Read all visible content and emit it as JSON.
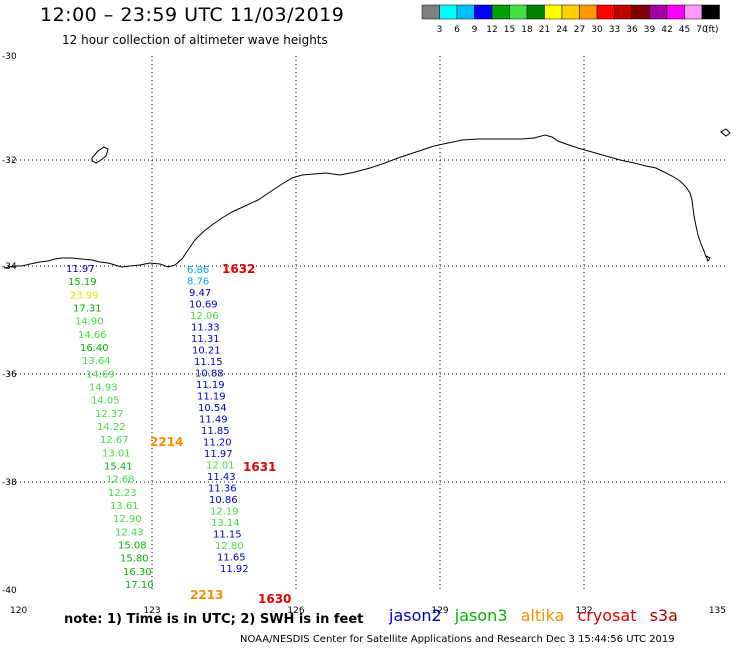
{
  "header": {
    "title": "12:00 – 23:59 UTC 11/03/2019",
    "subtitle": "12 hour collection of altimeter wave heights"
  },
  "colorbar": {
    "colors": [
      "#808080",
      "#00ffff",
      "#00bfff",
      "#0000ff",
      "#00a000",
      "#40e040",
      "#008000",
      "#ffff00",
      "#ffd000",
      "#ff9900",
      "#ff0000",
      "#c00000",
      "#800000",
      "#a000a0",
      "#ff00ff",
      "#ff99ff",
      "#000000"
    ],
    "labels": [
      "3",
      "6",
      "9",
      "12",
      "15",
      "18",
      "21",
      "24",
      "27",
      "30",
      "33",
      "36",
      "39",
      "42",
      "45",
      "70"
    ],
    "unit": "(ft)"
  },
  "map": {
    "lon_range": [
      120,
      135
    ],
    "lat_range": [
      -40,
      -30
    ],
    "x_labels": [
      "120",
      "123",
      "126",
      "129",
      "132",
      "135"
    ],
    "y_labels": [
      "-30",
      "-32",
      "-34",
      "-36",
      "-38",
      "-40"
    ]
  },
  "satellite_colors": {
    "jason2": "#0000c8",
    "jason3": "#00b400",
    "altika": "#ff8c00",
    "cryosat": "#e00000",
    "s3a": "#aa0000"
  },
  "observations": {
    "track1": [
      {
        "value": "11.97",
        "color": "#0000c8"
      },
      {
        "value": "15.19",
        "color": "#00b400"
      },
      {
        "value": "23.99",
        "color": "#e6e600"
      },
      {
        "value": "17.31",
        "color": "#00b400"
      },
      {
        "value": "14.90",
        "color": "#40e040"
      },
      {
        "value": "14.66",
        "color": "#40e040"
      },
      {
        "value": "16.40",
        "color": "#00b400"
      },
      {
        "value": "13.64",
        "color": "#40e040"
      },
      {
        "value": "14.69",
        "color": "#40e040"
      },
      {
        "value": "14.93",
        "color": "#40e040"
      },
      {
        "value": "14.05",
        "color": "#40e040"
      },
      {
        "value": "12.37",
        "color": "#40e040"
      },
      {
        "value": "14.22",
        "color": "#40e040"
      },
      {
        "value": "12.67",
        "color": "#40e040"
      },
      {
        "value": "13.01",
        "color": "#40e040"
      },
      {
        "value": "15.41",
        "color": "#00b400"
      },
      {
        "value": "12.68",
        "color": "#40e040"
      },
      {
        "value": "12.23",
        "color": "#40e040"
      },
      {
        "value": "13.61",
        "color": "#40e040"
      },
      {
        "value": "12.90",
        "color": "#40e040"
      },
      {
        "value": "12.43",
        "color": "#40e040"
      },
      {
        "value": "15.08",
        "color": "#00b400"
      },
      {
        "value": "15.80",
        "color": "#00b400"
      },
      {
        "value": "16.30",
        "color": "#00b400"
      },
      {
        "value": "17.10",
        "color": "#00b400"
      }
    ],
    "track2": [
      {
        "value": "6.86",
        "color": "#00aaff"
      },
      {
        "value": "8.76",
        "color": "#00aaff"
      },
      {
        "value": "9.47",
        "color": "#0000c8"
      },
      {
        "value": "10.69",
        "color": "#0000c8"
      },
      {
        "value": "12.06",
        "color": "#40e040"
      },
      {
        "value": "11.33",
        "color": "#0000c8"
      },
      {
        "value": "11.31",
        "color": "#0000c8"
      },
      {
        "value": "10.21",
        "color": "#0000c8"
      },
      {
        "value": "11.15",
        "color": "#0000c8"
      },
      {
        "value": "10.88",
        "color": "#0000c8"
      },
      {
        "value": "11.19",
        "color": "#0000c8"
      },
      {
        "value": "11.19",
        "color": "#0000c8"
      },
      {
        "value": "10.54",
        "color": "#0000c8"
      },
      {
        "value": "11.49",
        "color": "#0000c8"
      },
      {
        "value": "11.85",
        "color": "#0000c8"
      },
      {
        "value": "11.20",
        "color": "#0000c8"
      },
      {
        "value": "11.97",
        "color": "#0000c8"
      },
      {
        "value": "12.01",
        "color": "#40e040"
      },
      {
        "value": "11.43",
        "color": "#0000c8"
      },
      {
        "value": "11.36",
        "color": "#0000c8"
      },
      {
        "value": "10.86",
        "color": "#0000c8"
      },
      {
        "value": "12.19",
        "color": "#40e040"
      },
      {
        "value": "13.14",
        "color": "#40e040"
      },
      {
        "value": "11.15",
        "color": "#0000c8"
      },
      {
        "value": "12.80",
        "color": "#40e040"
      },
      {
        "value": "11.65",
        "color": "#0000c8"
      },
      {
        "value": "11.92",
        "color": "#0000c8"
      }
    ],
    "time_labels": [
      {
        "value": "1632",
        "color": "#e00000"
      },
      {
        "value": "2214",
        "color": "#ff8c00"
      },
      {
        "value": "1631",
        "color": "#e00000"
      },
      {
        "value": "2213",
        "color": "#ff8c00"
      },
      {
        "value": "1630",
        "color": "#e00000"
      }
    ]
  },
  "footer": {
    "note": "note: 1) Time is in UTC; 2) SWH is in feet",
    "legend": [
      "jason2",
      "jason3",
      "altika",
      "cryosat",
      "s3a"
    ],
    "credit": "NOAA/NESDIS Center for Satellite Applications and Research    Dec  3 15:44:56 UTC 2019"
  }
}
